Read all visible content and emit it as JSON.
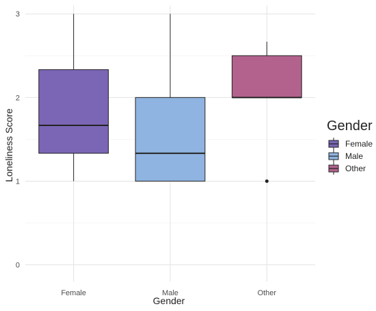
{
  "chart_data": {
    "type": "box",
    "xlabel": "Gender",
    "ylabel": "Loneliness Score",
    "ylim": [
      -0.2,
      3.1
    ],
    "y_ticks": [
      0,
      1,
      2,
      3
    ],
    "y_tick_labels": [
      "0",
      "1",
      "2",
      "3"
    ],
    "grid": true,
    "legend": {
      "title": "Gender",
      "placement": "right",
      "entries": [
        "Female",
        "Male",
        "Other"
      ]
    },
    "categories": [
      "Female",
      "Male",
      "Other"
    ],
    "boxes": [
      {
        "category": "Female",
        "min": 1.0,
        "q1": 1.333,
        "median": 1.667,
        "q3": 2.333,
        "max": 3.0,
        "outliers": [],
        "color": "#7B65B5"
      },
      {
        "category": "Male",
        "min": 1.0,
        "q1": 1.0,
        "median": 1.333,
        "q3": 2.0,
        "max": 3.0,
        "outliers": [],
        "color": "#8FB4E1"
      },
      {
        "category": "Other",
        "min": 2.0,
        "q1": 2.0,
        "median": 2.0,
        "q3": 2.5,
        "max": 2.667,
        "outliers": [
          1.0
        ],
        "color": "#B2628D"
      }
    ]
  }
}
